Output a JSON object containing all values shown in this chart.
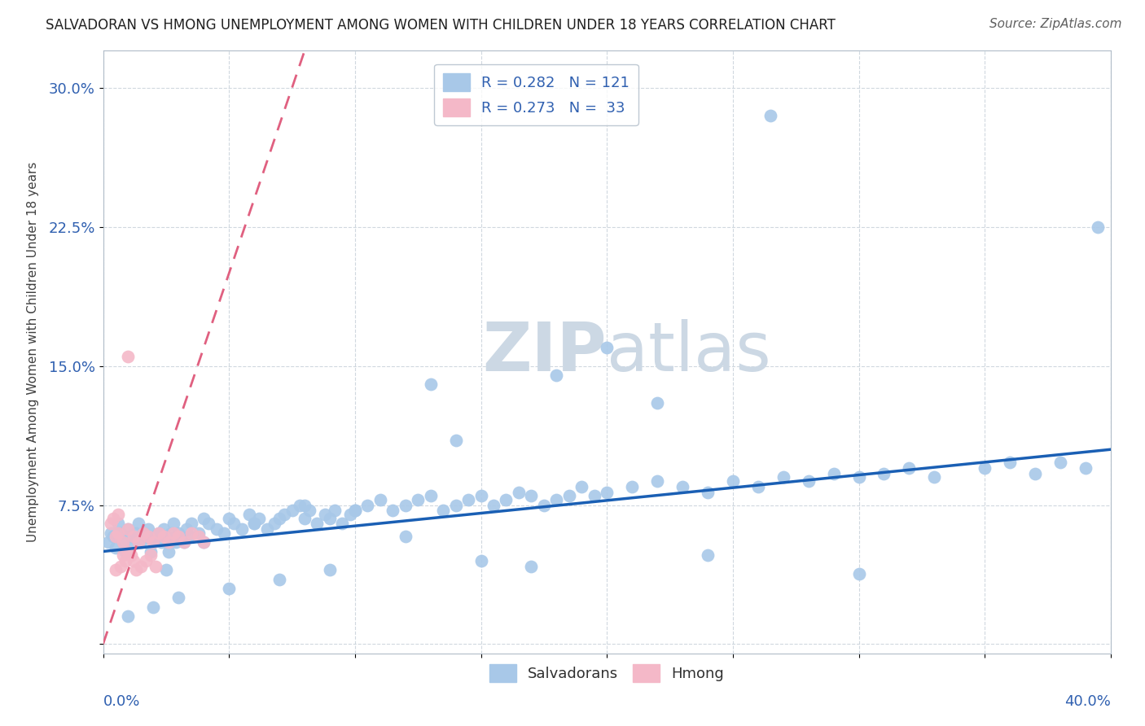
{
  "title": "SALVADORAN VS HMONG UNEMPLOYMENT AMONG WOMEN WITH CHILDREN UNDER 18 YEARS CORRELATION CHART",
  "source": "Source: ZipAtlas.com",
  "ylabel": "Unemployment Among Women with Children Under 18 years",
  "yticks": [
    0.0,
    0.075,
    0.15,
    0.225,
    0.3
  ],
  "ytick_labels": [
    "",
    "7.5%",
    "15.0%",
    "22.5%",
    "30.0%"
  ],
  "xlim": [
    0.0,
    0.4
  ],
  "ylim": [
    -0.005,
    0.32
  ],
  "legend_r_sal": "R = 0.282",
  "legend_n_sal": "N = 121",
  "legend_r_hmong": "R = 0.273",
  "legend_n_hmong": "N =  33",
  "color_sal": "#a8c8e8",
  "color_hmong": "#f4b8c8",
  "trendline_sal_color": "#1a5fb4",
  "trendline_hmong_color": "#e06080",
  "watermark_zip": "ZIP",
  "watermark_atlas": "atlas",
  "watermark_color": "#ccd8e4",
  "sal_x": [
    0.002,
    0.003,
    0.004,
    0.005,
    0.006,
    0.007,
    0.008,
    0.009,
    0.01,
    0.011,
    0.012,
    0.013,
    0.014,
    0.015,
    0.016,
    0.017,
    0.018,
    0.019,
    0.02,
    0.021,
    0.022,
    0.023,
    0.024,
    0.025,
    0.026,
    0.027,
    0.028,
    0.029,
    0.03,
    0.031,
    0.032,
    0.033,
    0.034,
    0.035,
    0.038,
    0.04,
    0.042,
    0.045,
    0.048,
    0.05,
    0.052,
    0.055,
    0.058,
    0.06,
    0.062,
    0.065,
    0.068,
    0.07,
    0.072,
    0.075,
    0.078,
    0.08,
    0.082,
    0.085,
    0.088,
    0.09,
    0.092,
    0.095,
    0.098,
    0.1,
    0.105,
    0.11,
    0.115,
    0.12,
    0.125,
    0.13,
    0.135,
    0.14,
    0.145,
    0.15,
    0.155,
    0.16,
    0.165,
    0.17,
    0.175,
    0.18,
    0.185,
    0.19,
    0.195,
    0.2,
    0.21,
    0.22,
    0.23,
    0.24,
    0.25,
    0.26,
    0.27,
    0.28,
    0.29,
    0.3,
    0.31,
    0.32,
    0.33,
    0.35,
    0.36,
    0.37,
    0.38,
    0.39,
    0.265,
    0.395,
    0.24,
    0.3,
    0.13,
    0.2,
    0.15,
    0.17,
    0.22,
    0.18,
    0.14,
    0.12,
    0.09,
    0.07,
    0.05,
    0.03,
    0.02,
    0.01,
    0.025,
    0.04,
    0.06,
    0.08,
    0.1
  ],
  "sal_y": [
    0.055,
    0.06,
    0.058,
    0.052,
    0.065,
    0.06,
    0.055,
    0.05,
    0.062,
    0.058,
    0.054,
    0.06,
    0.065,
    0.055,
    0.06,
    0.058,
    0.062,
    0.05,
    0.055,
    0.058,
    0.06,
    0.055,
    0.062,
    0.058,
    0.05,
    0.06,
    0.065,
    0.055,
    0.06,
    0.058,
    0.055,
    0.062,
    0.058,
    0.065,
    0.06,
    0.068,
    0.065,
    0.062,
    0.06,
    0.068,
    0.065,
    0.062,
    0.07,
    0.065,
    0.068,
    0.062,
    0.065,
    0.068,
    0.07,
    0.072,
    0.075,
    0.068,
    0.072,
    0.065,
    0.07,
    0.068,
    0.072,
    0.065,
    0.07,
    0.072,
    0.075,
    0.078,
    0.072,
    0.075,
    0.078,
    0.08,
    0.072,
    0.075,
    0.078,
    0.08,
    0.075,
    0.078,
    0.082,
    0.08,
    0.075,
    0.078,
    0.08,
    0.085,
    0.08,
    0.082,
    0.085,
    0.088,
    0.085,
    0.082,
    0.088,
    0.085,
    0.09,
    0.088,
    0.092,
    0.09,
    0.092,
    0.095,
    0.09,
    0.095,
    0.098,
    0.092,
    0.098,
    0.095,
    0.285,
    0.225,
    0.048,
    0.038,
    0.14,
    0.16,
    0.045,
    0.042,
    0.13,
    0.145,
    0.11,
    0.058,
    0.04,
    0.035,
    0.03,
    0.025,
    0.02,
    0.015,
    0.04,
    0.055,
    0.065,
    0.075,
    0.072
  ],
  "hmong_x": [
    0.005,
    0.006,
    0.008,
    0.01,
    0.012,
    0.014,
    0.016,
    0.018,
    0.02,
    0.022,
    0.024,
    0.026,
    0.028,
    0.03,
    0.032,
    0.035,
    0.038,
    0.04,
    0.005,
    0.007,
    0.009,
    0.011,
    0.013,
    0.015,
    0.017,
    0.019,
    0.021,
    0.003,
    0.004,
    0.006,
    0.008,
    0.01,
    0.012
  ],
  "hmong_y": [
    0.058,
    0.06,
    0.055,
    0.062,
    0.058,
    0.055,
    0.06,
    0.058,
    0.055,
    0.06,
    0.058,
    0.055,
    0.06,
    0.058,
    0.055,
    0.06,
    0.058,
    0.055,
    0.04,
    0.042,
    0.045,
    0.048,
    0.04,
    0.042,
    0.045,
    0.048,
    0.042,
    0.065,
    0.068,
    0.07,
    0.048,
    0.05,
    0.045
  ],
  "hmong_outlier_x": [
    0.01
  ],
  "hmong_outlier_y": [
    0.155
  ],
  "hmong_trendline_x0": 0.0,
  "hmong_trendline_y0": 0.0,
  "hmong_trendline_x1": 0.08,
  "hmong_trendline_y1": 0.32,
  "sal_trendline_x0": 0.0,
  "sal_trendline_y0": 0.05,
  "sal_trendline_x1": 0.4,
  "sal_trendline_y1": 0.105
}
